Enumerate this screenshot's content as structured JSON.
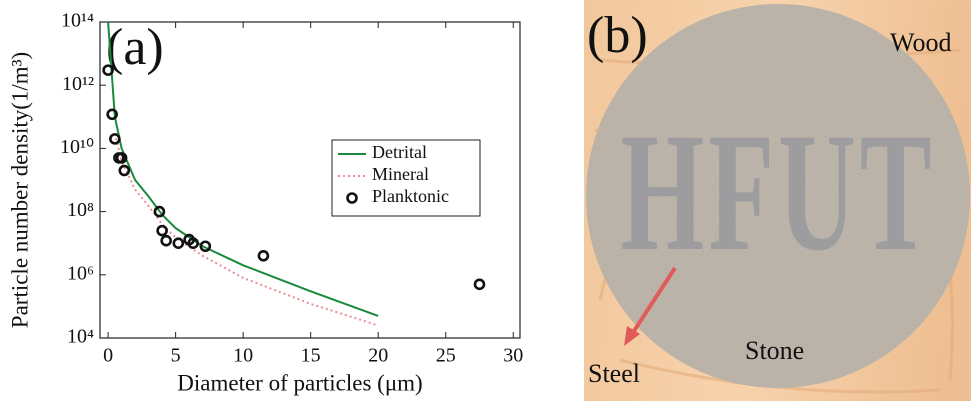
{
  "chart_data": {
    "type": "line",
    "panel_label": "(a)",
    "x_label": "Diameter of particles (μm)",
    "y_label": "Particle number density(1/m³)",
    "xlim": [
      -0.6,
      30.5
    ],
    "xticks": [
      0,
      5,
      10,
      15,
      20,
      25,
      30
    ],
    "ylim": [
      10000,
      100000000000000
    ],
    "log_y": true,
    "yticks": [
      {
        "value": 10000,
        "label": "10⁴"
      },
      {
        "value": 1000000,
        "label": "10⁶"
      },
      {
        "value": 100000000,
        "label": "10⁸"
      },
      {
        "value": 10000000000,
        "label": "10¹⁰"
      },
      {
        "value": 1000000000000,
        "label": "10¹²"
      },
      {
        "value": 100000000000000,
        "label": "10¹⁴"
      }
    ],
    "legend_position": "right",
    "series": [
      {
        "name": "Detrital",
        "color": "#1a8a3a",
        "style": "solid",
        "x": [
          0,
          0.5,
          1,
          2,
          3,
          4,
          5,
          7,
          10,
          15,
          20
        ],
        "values": [
          100000000000000,
          100000000000,
          10000000000,
          1000000000,
          300000000,
          80000000,
          30000000,
          8000000,
          2000000,
          300000,
          50000
        ]
      },
      {
        "name": "Mineral",
        "color": "#f08a96",
        "style": "dotted",
        "x": [
          0.5,
          1,
          2,
          3,
          4,
          5,
          7,
          10,
          15,
          20
        ],
        "values": [
          30000000000,
          4000000000,
          500000000,
          150000000,
          40000000,
          15000000,
          4000000,
          800000,
          120000,
          25000
        ]
      },
      {
        "name": "Planktonic",
        "color": "#111111",
        "style": "marker",
        "x": [
          0,
          0.3,
          0.5,
          0.8,
          1,
          1.2,
          3.8,
          4,
          4.3,
          5.2,
          6,
          6.3,
          7.2,
          11.5,
          27.5
        ],
        "values": [
          3000000000000,
          120000000000,
          20000000000,
          5000000000,
          5000000000,
          2000000000,
          100000000,
          25000000,
          12000000,
          10000000,
          13000000,
          10000000,
          8000000,
          4000000,
          500000
        ]
      }
    ]
  },
  "image_panel": {
    "panel_label": "(b)",
    "logo": "HFUT",
    "labels": {
      "wood": "Wood",
      "stone": "Stone",
      "steel": "Steel"
    }
  }
}
